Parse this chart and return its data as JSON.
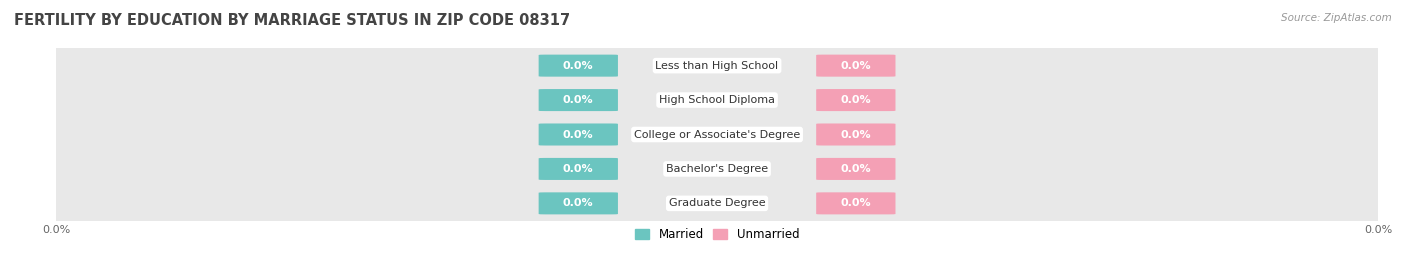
{
  "title": "FERTILITY BY EDUCATION BY MARRIAGE STATUS IN ZIP CODE 08317",
  "source": "Source: ZipAtlas.com",
  "categories": [
    "Less than High School",
    "High School Diploma",
    "College or Associate's Degree",
    "Bachelor's Degree",
    "Graduate Degree"
  ],
  "married_values": [
    0.0,
    0.0,
    0.0,
    0.0,
    0.0
  ],
  "unmarried_values": [
    0.0,
    0.0,
    0.0,
    0.0,
    0.0
  ],
  "married_color": "#6bc5c0",
  "unmarried_color": "#f4a0b5",
  "row_bg_color": "#e8e8e8",
  "title_fontsize": 10.5,
  "source_fontsize": 7.5,
  "label_fontsize": 8,
  "cat_fontsize": 8,
  "tick_fontsize": 8,
  "figsize": [
    14.06,
    2.69
  ]
}
